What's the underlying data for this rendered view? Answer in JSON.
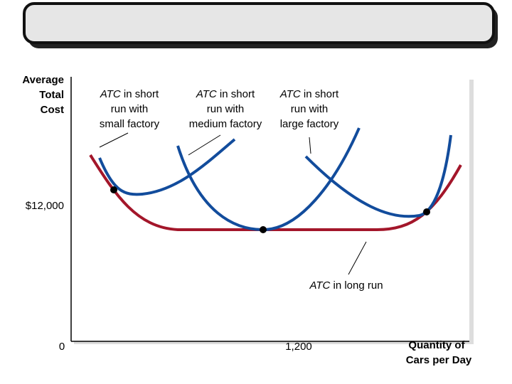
{
  "y_axis": {
    "label": [
      "Average",
      "Total",
      "Cost"
    ],
    "tick": "$12,000"
  },
  "x_axis": {
    "origin": "0",
    "tick": "1,200",
    "label": [
      "Quantity of",
      "Cars per Day"
    ]
  },
  "annotations": [
    {
      "term": "ATC",
      "lines": [
        "in short",
        "run with",
        "small factory"
      ]
    },
    {
      "term": "ATC",
      "lines": [
        "in short",
        "run with",
        "medium factory"
      ]
    },
    {
      "term": "ATC",
      "lines": [
        "in short",
        "run with",
        "large factory"
      ]
    }
  ],
  "long_run": {
    "term": "ATC",
    "text": "in long run"
  }
}
